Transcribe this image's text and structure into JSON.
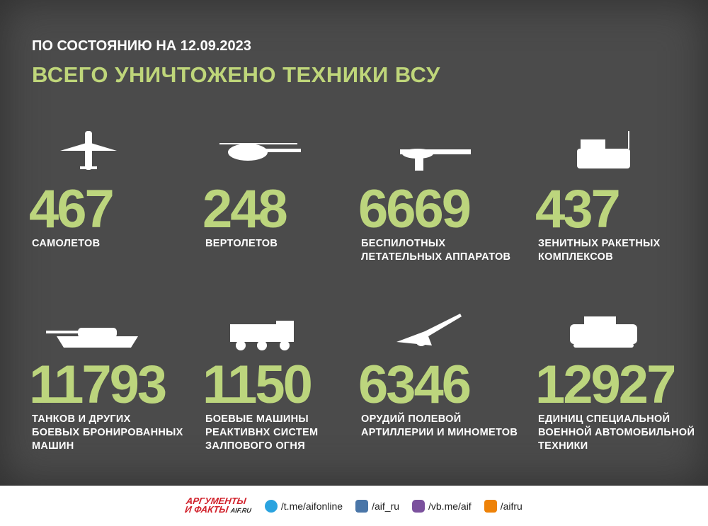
{
  "header": {
    "date_line": "ПО СОСТОЯНИЮ НА 12.09.2023",
    "title": "ВСЕГО УНИЧТОЖЕНО ТЕХНИКИ ВСУ"
  },
  "items": [
    {
      "number": 467,
      "label": [
        "САМОЛЕТОВ"
      ]
    },
    {
      "number": 248,
      "label": [
        "ВЕРТОЛЕТОВ"
      ]
    },
    {
      "number": 6669,
      "label": [
        "БЕСПИЛОТНЫХ",
        "ЛЕТАТЕЛЬНЫХ АППАРАТОВ"
      ]
    },
    {
      "number": 437,
      "label": [
        "ЗЕНИТНЫХ РАКЕТНЫХ",
        "КОМПЛЕКСОВ"
      ]
    },
    {
      "number": 11793,
      "label": [
        "ТАНКОВ И ДРУГИХ",
        "БОЕВЫХ БРОНИРОВАННЫХ",
        "МАШИН"
      ]
    },
    {
      "number": 1150,
      "label": [
        "БОЕВЫЕ МАШИНЫ",
        "РЕАКТИВНХ СИСТЕМ",
        "ЗАЛПОВОГО ОГНЯ"
      ]
    },
    {
      "number": 6346,
      "label": [
        "ОРУДИЙ ПОЛЕВОЙ",
        "АРТИЛЛЕРИИ И МИНОМЕТОВ"
      ]
    },
    {
      "number": 12927,
      "label": [
        "ЕДИНИЦ СПЕЦИАЛЬНОЙ",
        "ВОЕННОЙ АВТОМОБИЛЬНОЙ",
        "ТЕХНИКИ"
      ]
    }
  ],
  "footer": {
    "logo": [
      "АРГУМЕНТЫ",
      "И ФАКТЫ"
    ],
    "logo_site": "AIF.RU",
    "links": [
      "/t.me/aifonline",
      "/aif_ru",
      "/vb.me/aif",
      "/aifru"
    ]
  }
}
